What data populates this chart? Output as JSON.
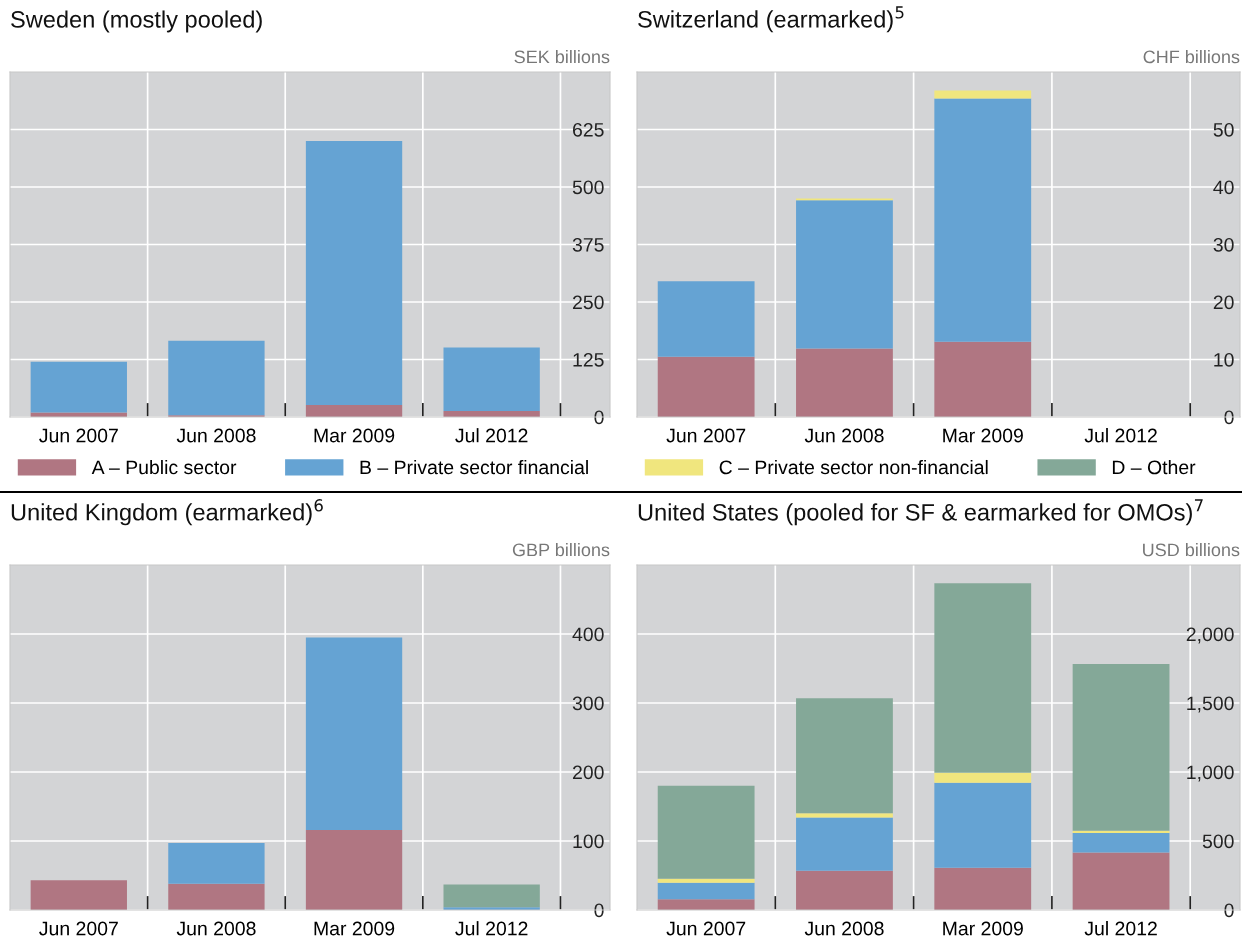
{
  "chart_data": [
    {
      "type": "bar",
      "title": "Sweden (mostly pooled)",
      "ylabel": "SEK billions",
      "stacked": true,
      "grid": true,
      "legend": "bottom",
      "categories": [
        "Jun 2007",
        "Jun 2008",
        "Mar 2009",
        "Jul 2012"
      ],
      "series": [
        {
          "name": "A – Public sector",
          "color": "#b07682",
          "values": [
            10,
            4,
            26,
            13
          ]
        },
        {
          "name": "B – Private sector financial",
          "color": "#65a3d3",
          "values": [
            110,
            162,
            574,
            138
          ]
        }
      ],
      "ylim": [
        0,
        750
      ],
      "yticks": [
        0,
        125,
        250,
        375,
        500,
        625
      ]
    },
    {
      "type": "bar",
      "title": "Switzerland (earmarked)$^{5}$",
      "ylabel": "CHF billions",
      "stacked": true,
      "grid": true,
      "legend": "bottom",
      "categories": [
        "Jun 2007",
        "Jun 2008",
        "Mar 2009",
        "Jul 2012"
      ],
      "series": [
        {
          "color": "#b07682",
          "values": [
            10.5,
            11.9,
            13.1,
            null
          ]
        },
        {
          "color": "#65a3d3",
          "values": [
            13.1,
            25.8,
            42.3,
            null
          ]
        },
        {
          "name": "C – Private sector non-financial",
          "color": "#f0e67e",
          "values": [
            null,
            0.3,
            1.4,
            null
          ]
        },
        {
          "name": "D – Other",
          "color": "#84a898",
          "values": [
            null,
            null,
            null,
            null
          ]
        }
      ],
      "ylim": [
        0,
        60
      ],
      "yticks": [
        0,
        10,
        20,
        30,
        40,
        50
      ]
    },
    {
      "type": "bar",
      "title": "United Kingdom (earmarked)$^{6}$",
      "ylabel": "GBP billions",
      "stacked": true,
      "grid": true,
      "categories": [
        "Jun 2007",
        "Jun 2008",
        "Mar 2009",
        "Jul 2012"
      ],
      "series": [
        {
          "color": "#b07682",
          "values": [
            43,
            38,
            116,
            null
          ]
        },
        {
          "color": "#65a3d3",
          "values": [
            null,
            59,
            279,
            4
          ]
        },
        {
          "color": "#84a898",
          "values": [
            null,
            null,
            null,
            33
          ]
        }
      ],
      "ylim": [
        0,
        500
      ],
      "yticks": [
        0,
        100,
        200,
        300,
        400
      ]
    },
    {
      "type": "bar",
      "title": "United States (pooled for SF & earmarked for OMOs)$^{7}$",
      "ylabel": "USD billions",
      "stacked": true,
      "grid": true,
      "categories": [
        "Jun 2007",
        "Jun 2008",
        "Mar 2009",
        "Jul 2012"
      ],
      "series": [
        {
          "color": "#b07682",
          "values": [
            78,
            285,
            307,
            417
          ]
        },
        {
          "color": "#65a3d3",
          "values": [
            120,
            385,
            616,
            141
          ]
        },
        {
          "color": "#f0e67e",
          "values": [
            29,
            31,
            71,
            17
          ]
        },
        {
          "color": "#84a898",
          "values": [
            673,
            834,
            1374,
            1207
          ]
        }
      ],
      "ylim": [
        0,
        2500
      ],
      "yticks": [
        0,
        {
          "value": 500,
          "label": "500"
        },
        {
          "value": 1000,
          "label": "1,000"
        },
        {
          "value": 1500,
          "label": "1,500"
        },
        {
          "value": 2000,
          "label": "2,000"
        }
      ]
    }
  ]
}
